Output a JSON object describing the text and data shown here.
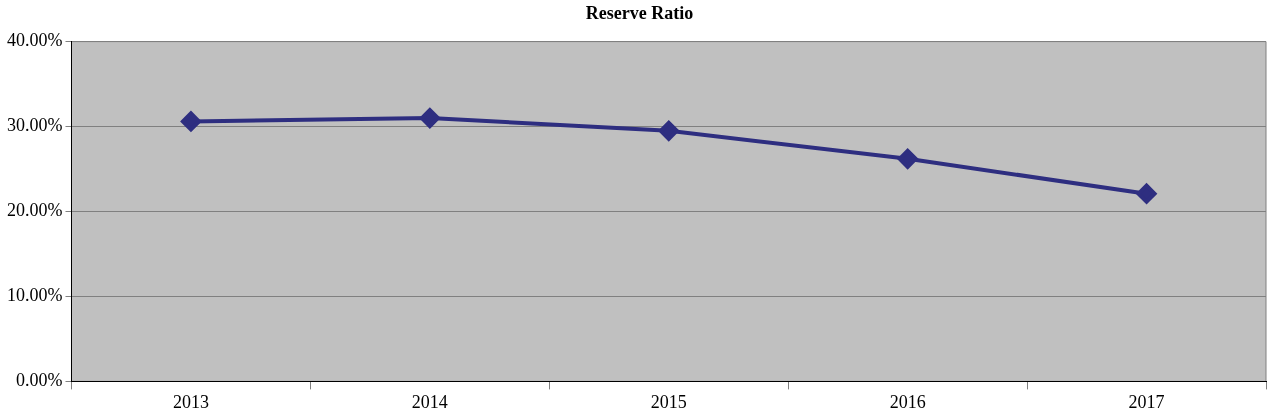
{
  "chart_data": {
    "type": "line",
    "title": "Reserve Ratio",
    "categories": [
      "2013",
      "2014",
      "2015",
      "2016",
      "2017"
    ],
    "series": [
      {
        "color": "#2e2e80",
        "values": [
          30.6,
          31.0,
          29.5,
          26.2,
          22.1
        ]
      }
    ],
    "ylim": [
      0,
      40
    ],
    "yticks": [
      {
        "value": 0,
        "label": "0.00%"
      },
      {
        "value": 10,
        "label": "10.00%"
      },
      {
        "value": 20,
        "label": "20.00%"
      },
      {
        "value": 30,
        "label": "30.00%"
      },
      {
        "value": 40,
        "label": "40.00%"
      }
    ],
    "grid": "y",
    "legend": false,
    "marker": "diamond",
    "line_style": "solid"
  }
}
